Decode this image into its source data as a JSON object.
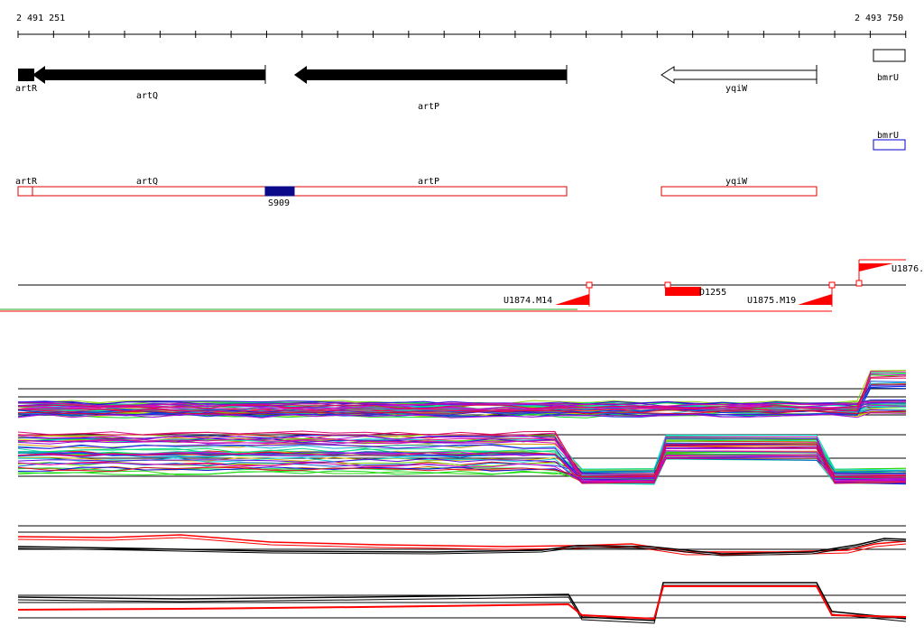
{
  "coords": {
    "start": "2 491 251",
    "end": "2 493 750"
  },
  "genes_top": [
    {
      "name": "artR"
    },
    {
      "name": "artQ"
    },
    {
      "name": "artP"
    },
    {
      "name": "yqiW"
    },
    {
      "name": "bmrU"
    }
  ],
  "bmrU_blue_label": "bmrU",
  "annotation_track": {
    "labels": [
      "artR",
      "artQ",
      "artP",
      "yqiW"
    ],
    "marker": "S909"
  },
  "features": {
    "u1874": "U1874.M14",
    "d1255": "D1255",
    "u1875": "U1875.M19",
    "u1876": "U1876."
  },
  "colors": {
    "gene_fill": "#000000",
    "outline_red": "#dd0000",
    "marker_blue": "#0a0a8a",
    "bmrU_blue": "#0000cc",
    "feature_red": "#ff0000",
    "green_line": "#22aa22"
  }
}
